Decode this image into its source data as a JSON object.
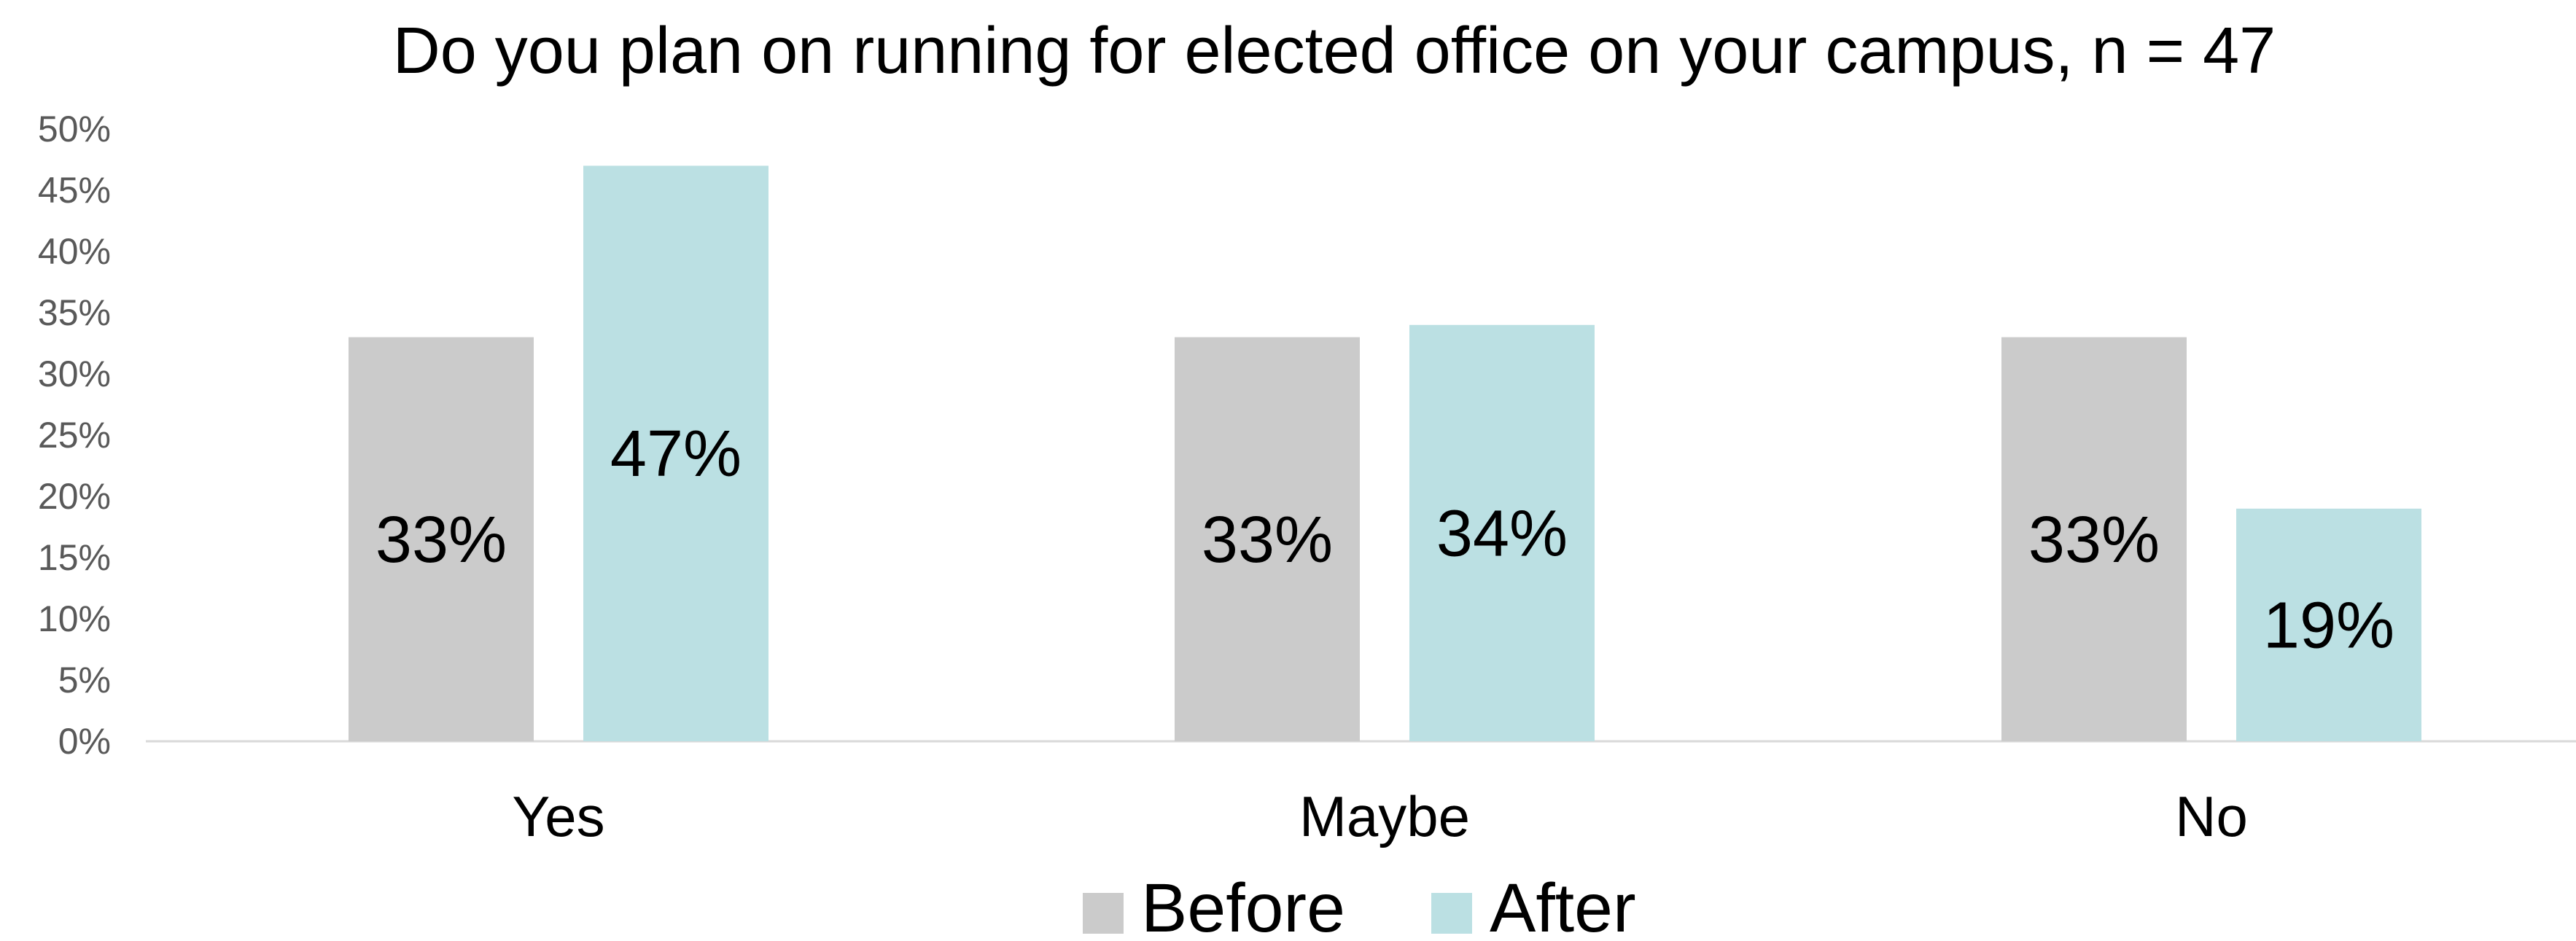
{
  "chart_data": {
    "type": "bar",
    "title": "Do you plan on running for elected office on your campus, n = 47",
    "categories": [
      "Yes",
      "Maybe",
      "No"
    ],
    "series": [
      {
        "name": "Before",
        "values": [
          33,
          33,
          33
        ],
        "labels": [
          "33%",
          "33%",
          "33%"
        ],
        "color": "#cbcbcb"
      },
      {
        "name": "After",
        "values": [
          47,
          34,
          19
        ],
        "labels": [
          "47%",
          "34%",
          "19%"
        ],
        "color": "#bbe0e3"
      }
    ],
    "ylim": [
      0,
      50
    ],
    "yticks": [
      "0%",
      "5%",
      "10%",
      "15%",
      "20%",
      "25%",
      "30%",
      "35%",
      "40%",
      "45%",
      "50%"
    ],
    "grid": false,
    "legend_position": "bottom"
  }
}
